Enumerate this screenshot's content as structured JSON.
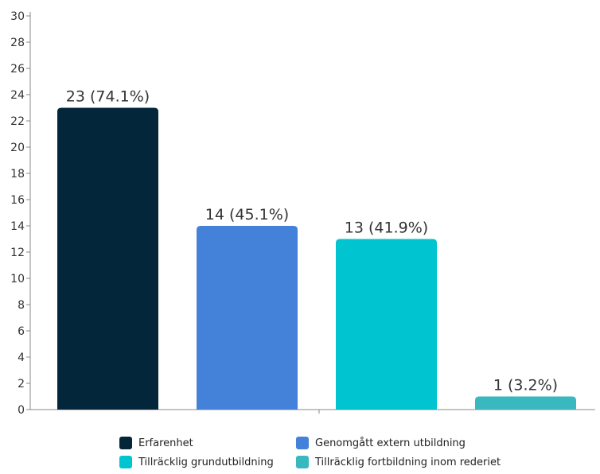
{
  "chart_data": {
    "type": "bar",
    "categories": [
      "Erfarenhet",
      "Genomgått extern utbildning",
      "Tillräcklig grundutbildning",
      "Tillräcklig fortbildning inom rederiet"
    ],
    "values": [
      23,
      14,
      13,
      1
    ],
    "data_labels": [
      "23 (74.1%)",
      "14 (45.1%)",
      "13 (41.9%)",
      "1 (3.2%)"
    ],
    "colors": [
      "#04263a",
      "#4382d8",
      "#00c4d0",
      "#3ab8c0"
    ],
    "ylim": [
      0,
      30
    ],
    "yticks": [
      0,
      2,
      4,
      6,
      8,
      10,
      12,
      14,
      16,
      18,
      20,
      22,
      24,
      26,
      28,
      30
    ],
    "legend_position": "bottom",
    "grid": false
  }
}
